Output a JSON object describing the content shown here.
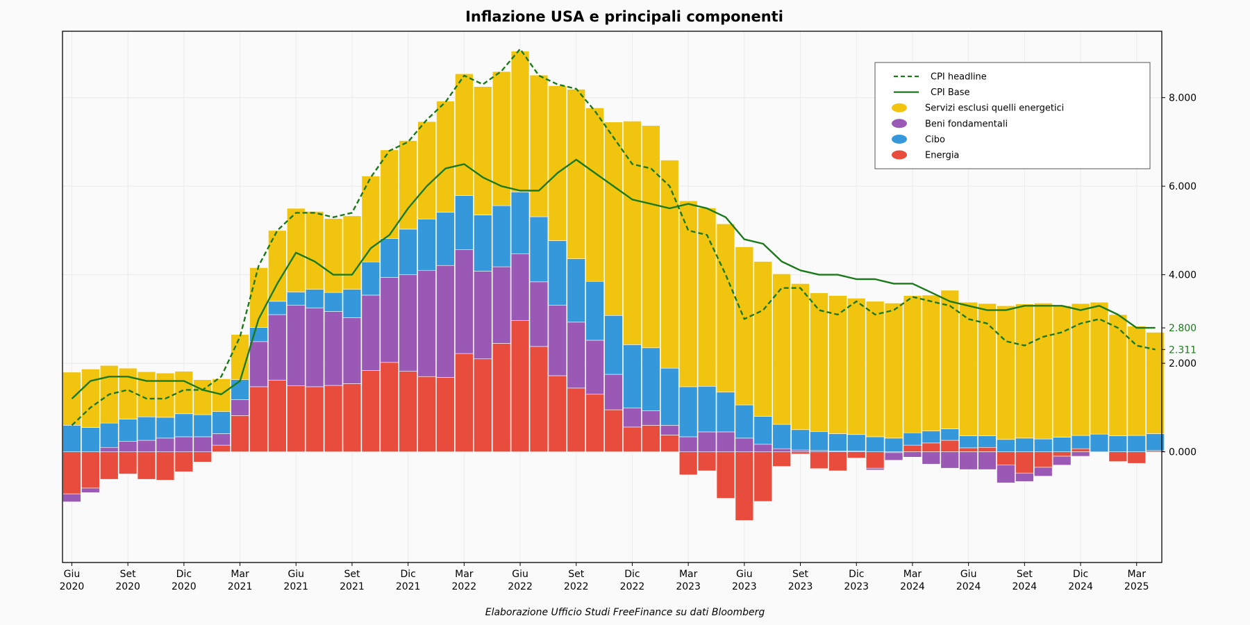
{
  "chart_data": {
    "type": "bar",
    "stacked": true,
    "title": "Inflazione USA e principali componenti",
    "caption": "Elaborazione Ufficio Studi FreeFinance su dati Bloomberg",
    "ylim": [
      -2.5,
      9.5
    ],
    "y_ticks": [
      0,
      2,
      4,
      6,
      8
    ],
    "y_tick_labels": [
      "0.000",
      "2.000",
      "4.000",
      "6.000",
      "8.000"
    ],
    "grid": true,
    "legend_position": "top-right",
    "months": [
      "2020-06",
      "2020-07",
      "2020-08",
      "2020-09",
      "2020-10",
      "2020-11",
      "2020-12",
      "2021-01",
      "2021-02",
      "2021-03",
      "2021-04",
      "2021-05",
      "2021-06",
      "2021-07",
      "2021-08",
      "2021-09",
      "2021-10",
      "2021-11",
      "2021-12",
      "2022-01",
      "2022-02",
      "2022-03",
      "2022-04",
      "2022-05",
      "2022-06",
      "2022-07",
      "2022-08",
      "2022-09",
      "2022-10",
      "2022-11",
      "2022-12",
      "2023-01",
      "2023-02",
      "2023-03",
      "2023-04",
      "2023-05",
      "2023-06",
      "2023-07",
      "2023-08",
      "2023-09",
      "2023-10",
      "2023-11",
      "2023-12",
      "2024-01",
      "2024-02",
      "2024-03",
      "2024-04",
      "2024-05",
      "2024-06",
      "2024-07",
      "2024-08",
      "2024-09",
      "2024-10",
      "2024-11",
      "2024-12",
      "2025-01",
      "2025-02",
      "2025-03",
      "2025-04"
    ],
    "x_ticks": [
      {
        "index": 0,
        "month": "Giu",
        "year": "2020"
      },
      {
        "index": 3,
        "month": "Set",
        "year": "2020"
      },
      {
        "index": 6,
        "month": "Dic",
        "year": "2020"
      },
      {
        "index": 9,
        "month": "Mar",
        "year": "2021"
      },
      {
        "index": 12,
        "month": "Giu",
        "year": "2021"
      },
      {
        "index": 15,
        "month": "Set",
        "year": "2021"
      },
      {
        "index": 18,
        "month": "Dic",
        "year": "2021"
      },
      {
        "index": 21,
        "month": "Mar",
        "year": "2022"
      },
      {
        "index": 24,
        "month": "Giu",
        "year": "2022"
      },
      {
        "index": 27,
        "month": "Set",
        "year": "2022"
      },
      {
        "index": 30,
        "month": "Dic",
        "year": "2022"
      },
      {
        "index": 33,
        "month": "Mar",
        "year": "2023"
      },
      {
        "index": 36,
        "month": "Giu",
        "year": "2023"
      },
      {
        "index": 39,
        "month": "Set",
        "year": "2023"
      },
      {
        "index": 42,
        "month": "Dic",
        "year": "2023"
      },
      {
        "index": 45,
        "month": "Mar",
        "year": "2024"
      },
      {
        "index": 48,
        "month": "Giu",
        "year": "2024"
      },
      {
        "index": 51,
        "month": "Set",
        "year": "2024"
      },
      {
        "index": 54,
        "month": "Dic",
        "year": "2024"
      },
      {
        "index": 57,
        "month": "Mar",
        "year": "2025"
      }
    ],
    "bar_series": [
      {
        "name": "Energia",
        "color": "#e74c3c",
        "values": [
          -0.95,
          -0.82,
          -0.62,
          -0.5,
          -0.62,
          -0.64,
          -0.45,
          -0.23,
          0.15,
          0.82,
          1.47,
          1.62,
          1.49,
          1.47,
          1.5,
          1.54,
          1.84,
          2.02,
          1.82,
          1.7,
          1.68,
          2.22,
          2.1,
          2.45,
          2.97,
          2.38,
          1.72,
          1.44,
          1.3,
          0.95,
          0.56,
          0.6,
          0.38,
          -0.52,
          -0.43,
          -1.05,
          -1.55,
          -1.12,
          -0.33,
          -0.05,
          -0.38,
          -0.43,
          -0.14,
          -0.37,
          -0.02,
          0.15,
          0.2,
          0.26,
          0.09,
          0.1,
          -0.3,
          -0.48,
          -0.35,
          -0.1,
          0.07,
          0.0,
          -0.22,
          -0.26,
          0.03
        ]
      },
      {
        "name": "Beni fondamentali",
        "color": "#9b59b6",
        "values": [
          -0.18,
          -0.1,
          0.1,
          0.24,
          0.26,
          0.31,
          0.34,
          0.34,
          0.26,
          0.36,
          1.02,
          1.48,
          1.82,
          1.78,
          1.67,
          1.49,
          1.7,
          1.92,
          2.18,
          2.4,
          2.53,
          2.35,
          1.98,
          1.73,
          1.5,
          1.46,
          1.59,
          1.49,
          1.22,
          0.8,
          0.43,
          0.33,
          0.22,
          0.34,
          0.45,
          0.45,
          0.31,
          0.17,
          0.07,
          0.04,
          0.03,
          0.02,
          0.02,
          -0.04,
          -0.17,
          -0.12,
          -0.28,
          -0.37,
          -0.4,
          -0.4,
          -0.4,
          -0.19,
          -0.2,
          -0.2,
          -0.1,
          0.0,
          0.0,
          0.0,
          0.0
        ]
      },
      {
        "name": "Cibo",
        "color": "#3498db",
        "values": [
          0.6,
          0.55,
          0.55,
          0.5,
          0.53,
          0.47,
          0.52,
          0.5,
          0.5,
          0.45,
          0.32,
          0.3,
          0.3,
          0.42,
          0.43,
          0.64,
          0.75,
          0.88,
          1.03,
          1.16,
          1.2,
          1.22,
          1.27,
          1.38,
          1.4,
          1.47,
          1.46,
          1.43,
          1.33,
          1.33,
          1.43,
          1.42,
          1.29,
          1.13,
          1.03,
          0.9,
          0.75,
          0.63,
          0.55,
          0.46,
          0.43,
          0.39,
          0.37,
          0.34,
          0.31,
          0.28,
          0.27,
          0.26,
          0.27,
          0.26,
          0.28,
          0.31,
          0.29,
          0.33,
          0.3,
          0.4,
          0.36,
          0.37,
          0.38
        ]
      },
      {
        "name": "Servizi esclusi quelli energetici",
        "color": "#f1c40f",
        "values": [
          1.2,
          1.32,
          1.3,
          1.15,
          1.02,
          1.0,
          0.96,
          0.79,
          0.74,
          1.02,
          1.35,
          1.6,
          1.89,
          1.76,
          1.67,
          1.66,
          1.94,
          2.0,
          2.0,
          2.2,
          2.51,
          2.75,
          2.9,
          3.03,
          3.18,
          3.2,
          3.5,
          3.83,
          3.92,
          4.37,
          5.05,
          5.02,
          4.7,
          4.2,
          4.03,
          3.8,
          3.57,
          3.5,
          3.4,
          3.3,
          3.13,
          3.12,
          3.08,
          3.06,
          3.05,
          3.1,
          3.07,
          3.13,
          3.02,
          2.99,
          3.02,
          3.03,
          3.07,
          2.97,
          2.98,
          2.98,
          2.74,
          2.47,
          2.29
        ]
      }
    ],
    "line_series": [
      {
        "name": "CPI headline",
        "color": "#1a7a1a",
        "dashed": true,
        "end_label": "2.311",
        "values": [
          0.6,
          1.0,
          1.3,
          1.4,
          1.2,
          1.2,
          1.4,
          1.4,
          1.7,
          2.6,
          4.2,
          5.0,
          5.4,
          5.4,
          5.3,
          5.4,
          6.2,
          6.8,
          7.0,
          7.5,
          7.9,
          8.5,
          8.3,
          8.6,
          9.1,
          8.5,
          8.3,
          8.2,
          7.7,
          7.1,
          6.5,
          6.4,
          6.0,
          5.0,
          4.9,
          4.0,
          3.0,
          3.2,
          3.7,
          3.7,
          3.2,
          3.1,
          3.4,
          3.1,
          3.2,
          3.5,
          3.4,
          3.3,
          3.0,
          2.9,
          2.5,
          2.4,
          2.6,
          2.7,
          2.9,
          3.0,
          2.8,
          2.4,
          2.311
        ]
      },
      {
        "name": "CPI Base",
        "color": "#1a7a1a",
        "dashed": false,
        "end_label": "2.800",
        "values": [
          1.2,
          1.6,
          1.7,
          1.7,
          1.6,
          1.6,
          1.6,
          1.4,
          1.3,
          1.6,
          3.0,
          3.8,
          4.5,
          4.3,
          4.0,
          4.0,
          4.6,
          4.9,
          5.5,
          6.0,
          6.4,
          6.5,
          6.2,
          6.0,
          5.9,
          5.9,
          6.3,
          6.6,
          6.3,
          6.0,
          5.7,
          5.6,
          5.5,
          5.6,
          5.5,
          5.3,
          4.8,
          4.7,
          4.3,
          4.1,
          4.0,
          4.0,
          3.9,
          3.9,
          3.8,
          3.8,
          3.6,
          3.4,
          3.3,
          3.2,
          3.2,
          3.3,
          3.3,
          3.3,
          3.2,
          3.3,
          3.1,
          2.8,
          2.8
        ]
      }
    ],
    "legend_entries": [
      {
        "name": "CPI headline",
        "kind": "dashed-line",
        "color": "#1a7a1a"
      },
      {
        "name": "CPI Base",
        "kind": "line",
        "color": "#1a7a1a"
      },
      {
        "name": "Servizi esclusi quelli energetici",
        "kind": "marker",
        "color": "#f1c40f"
      },
      {
        "name": "Beni fondamentali",
        "kind": "marker",
        "color": "#9b59b6"
      },
      {
        "name": "Cibo",
        "kind": "marker",
        "color": "#3498db"
      },
      {
        "name": "Energia",
        "kind": "marker",
        "color": "#e74c3c"
      }
    ]
  }
}
